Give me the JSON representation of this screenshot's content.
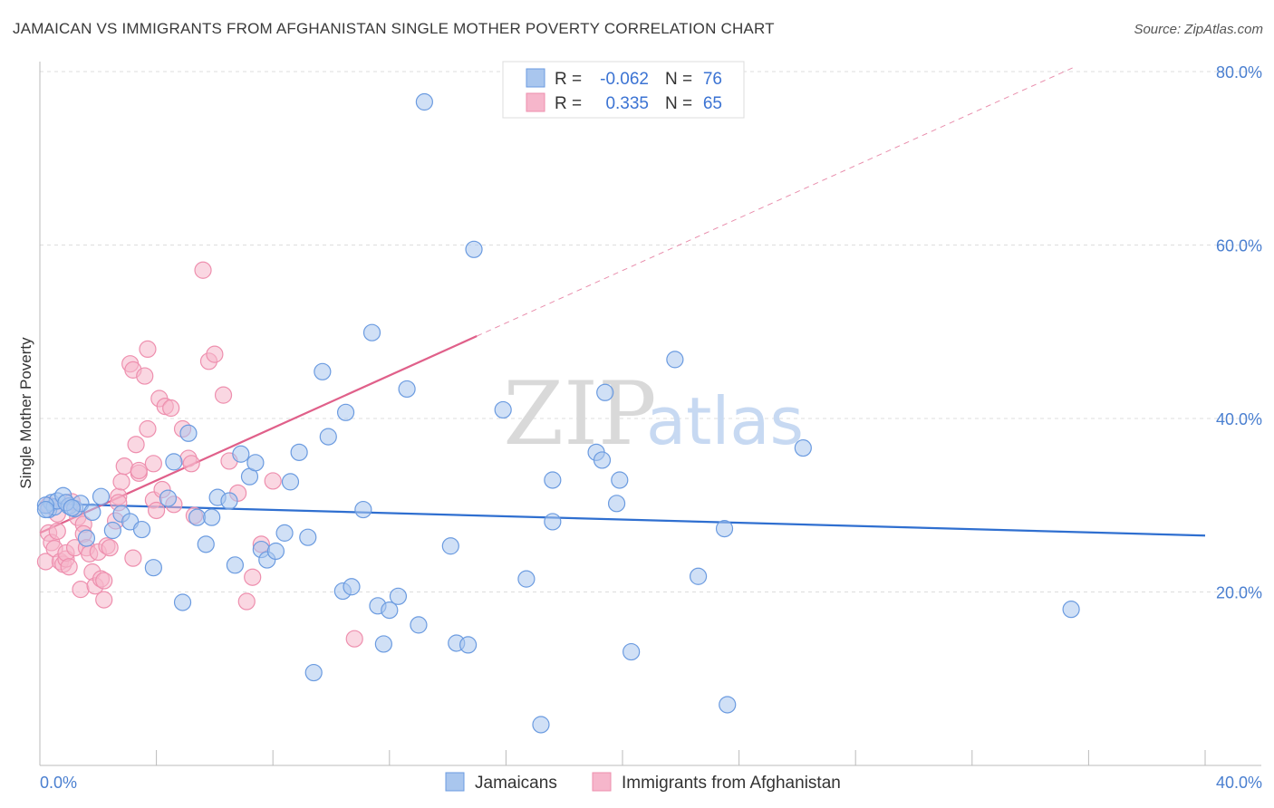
{
  "title": "JAMAICAN VS IMMIGRANTS FROM AFGHANISTAN SINGLE MOTHER POVERTY CORRELATION CHART",
  "source": "Source: ZipAtlas.com",
  "watermark": {
    "zip": "ZIP",
    "atlas": "atlas"
  },
  "colors": {
    "blue_fill": "#a9c6ee",
    "blue_stroke": "#6b9be0",
    "blue_line": "#2f6fd0",
    "pink_fill": "#f6b6cb",
    "pink_stroke": "#ee8fae",
    "pink_line": "#e0608a",
    "tick_color": "#4a7fd0",
    "grid": "#dddddd"
  },
  "legend": {
    "rows": [
      {
        "r_label": "R =",
        "r_value": "-0.062",
        "n_label": "N =",
        "n_value": "76",
        "series": "blue"
      },
      {
        "r_label": "R =",
        "r_value": "0.335",
        "n_label": "N =",
        "n_value": "65",
        "series": "pink"
      }
    ]
  },
  "bottom_legend": {
    "items": [
      "Jamaicans",
      "Immigrants from Afghanistan"
    ]
  },
  "chart_data": {
    "type": "scatter",
    "title": "JAMAICAN VS IMMIGRANTS FROM AFGHANISTAN SINGLE MOTHER POVERTY CORRELATION CHART",
    "xlabel": "",
    "ylabel": "Single Mother Poverty",
    "xlim": [
      0,
      40
    ],
    "ylim": [
      0,
      80
    ],
    "x_tick_labels": [
      "0.0%",
      "40.0%"
    ],
    "y_tick_labels": [
      "20.0%",
      "40.0%",
      "60.0%",
      "80.0%"
    ],
    "y_ticks": [
      20,
      40,
      60,
      80
    ],
    "grid": true,
    "legend_position": "top-center",
    "series": [
      {
        "name": "Jamaicans",
        "color": "blue",
        "points": [
          [
            0.3,
            29.5
          ],
          [
            0.4,
            30.3
          ],
          [
            0.5,
            29.8
          ],
          [
            0.6,
            30.5
          ],
          [
            0.8,
            31.1
          ],
          [
            1.0,
            29.9
          ],
          [
            1.2,
            29.6
          ],
          [
            1.4,
            30.2
          ],
          [
            1.6,
            26.2
          ],
          [
            1.8,
            29.2
          ],
          [
            2.1,
            31.0
          ],
          [
            2.5,
            27.1
          ],
          [
            2.8,
            29.0
          ],
          [
            3.1,
            28.1
          ],
          [
            3.5,
            27.2
          ],
          [
            3.9,
            22.8
          ],
          [
            4.4,
            30.8
          ],
          [
            4.6,
            35.0
          ],
          [
            4.9,
            18.8
          ],
          [
            5.1,
            38.3
          ],
          [
            5.4,
            28.6
          ],
          [
            5.7,
            25.5
          ],
          [
            5.9,
            28.6
          ],
          [
            6.1,
            30.9
          ],
          [
            6.5,
            30.5
          ],
          [
            6.7,
            23.1
          ],
          [
            6.9,
            35.9
          ],
          [
            7.2,
            33.3
          ],
          [
            7.4,
            34.9
          ],
          [
            7.6,
            24.9
          ],
          [
            7.8,
            23.7
          ],
          [
            8.1,
            24.7
          ],
          [
            8.4,
            26.8
          ],
          [
            8.6,
            32.7
          ],
          [
            8.9,
            36.1
          ],
          [
            9.2,
            26.3
          ],
          [
            9.4,
            10.7
          ],
          [
            9.7,
            45.4
          ],
          [
            9.9,
            37.9
          ],
          [
            10.4,
            20.1
          ],
          [
            10.7,
            20.6
          ],
          [
            10.5,
            40.7
          ],
          [
            11.1,
            29.5
          ],
          [
            11.4,
            49.9
          ],
          [
            11.6,
            18.4
          ],
          [
            11.8,
            14.0
          ],
          [
            12.0,
            17.9
          ],
          [
            12.3,
            19.5
          ],
          [
            12.6,
            43.4
          ],
          [
            13.0,
            16.2
          ],
          [
            13.2,
            76.5
          ],
          [
            14.1,
            25.3
          ],
          [
            14.3,
            14.1
          ],
          [
            14.7,
            13.9
          ],
          [
            14.9,
            59.5
          ],
          [
            15.9,
            41.0
          ],
          [
            16.7,
            21.5
          ],
          [
            17.2,
            4.7
          ],
          [
            17.6,
            32.9
          ],
          [
            17.6,
            28.1
          ],
          [
            19.1,
            36.1
          ],
          [
            19.4,
            43.0
          ],
          [
            19.3,
            35.2
          ],
          [
            19.9,
            32.9
          ],
          [
            19.8,
            30.2
          ],
          [
            20.3,
            13.1
          ],
          [
            21.8,
            46.8
          ],
          [
            22.6,
            21.8
          ],
          [
            23.5,
            27.3
          ],
          [
            23.6,
            7.0
          ],
          [
            26.2,
            36.6
          ],
          [
            35.4,
            18.0
          ],
          [
            0.2,
            30.0
          ],
          [
            0.2,
            29.5
          ],
          [
            0.9,
            30.3
          ],
          [
            1.1,
            29.7
          ]
        ]
      },
      {
        "name": "Immigrants from Afghanistan",
        "color": "pink",
        "points": [
          [
            0.2,
            23.5
          ],
          [
            0.3,
            26.8
          ],
          [
            0.3,
            30.0
          ],
          [
            0.4,
            25.7
          ],
          [
            0.5,
            25.0
          ],
          [
            0.6,
            29.0
          ],
          [
            0.6,
            27.0
          ],
          [
            0.7,
            23.5
          ],
          [
            0.8,
            23.2
          ],
          [
            0.9,
            23.8
          ],
          [
            0.9,
            24.5
          ],
          [
            1.0,
            22.9
          ],
          [
            1.1,
            30.4
          ],
          [
            1.2,
            25.1
          ],
          [
            1.3,
            28.6
          ],
          [
            1.4,
            20.3
          ],
          [
            1.5,
            27.8
          ],
          [
            1.5,
            26.7
          ],
          [
            1.6,
            25.1
          ],
          [
            1.7,
            24.4
          ],
          [
            1.8,
            22.3
          ],
          [
            1.9,
            20.7
          ],
          [
            2.0,
            24.6
          ],
          [
            2.1,
            21.5
          ],
          [
            2.2,
            21.3
          ],
          [
            2.3,
            25.3
          ],
          [
            2.4,
            25.1
          ],
          [
            2.6,
            28.2
          ],
          [
            2.7,
            31.0
          ],
          [
            2.7,
            30.3
          ],
          [
            2.8,
            32.7
          ],
          [
            2.9,
            34.5
          ],
          [
            3.1,
            46.3
          ],
          [
            3.2,
            45.6
          ],
          [
            3.3,
            37.0
          ],
          [
            3.4,
            33.7
          ],
          [
            3.4,
            34.0
          ],
          [
            3.6,
            44.9
          ],
          [
            3.7,
            48.0
          ],
          [
            3.7,
            38.8
          ],
          [
            3.9,
            30.6
          ],
          [
            3.9,
            34.8
          ],
          [
            4.1,
            42.3
          ],
          [
            4.3,
            41.4
          ],
          [
            4.5,
            41.2
          ],
          [
            4.6,
            30.1
          ],
          [
            4.9,
            38.8
          ],
          [
            5.1,
            35.4
          ],
          [
            5.2,
            34.8
          ],
          [
            5.3,
            28.8
          ],
          [
            5.6,
            57.1
          ],
          [
            5.8,
            46.6
          ],
          [
            6.0,
            47.4
          ],
          [
            6.3,
            42.7
          ],
          [
            6.5,
            35.1
          ],
          [
            6.8,
            31.4
          ],
          [
            7.1,
            18.9
          ],
          [
            7.3,
            21.7
          ],
          [
            7.6,
            25.5
          ],
          [
            8.0,
            32.8
          ],
          [
            10.8,
            14.6
          ],
          [
            3.2,
            23.9
          ],
          [
            4.0,
            29.4
          ],
          [
            4.2,
            31.8
          ],
          [
            2.2,
            19.1
          ]
        ]
      }
    ],
    "trendlines": [
      {
        "series": "Jamaicans",
        "x": [
          0,
          40
        ],
        "y": [
          30.2,
          26.5
        ],
        "style": "solid"
      },
      {
        "series": "Immigrants from Afghanistan",
        "x": [
          0,
          15
        ],
        "y": [
          26.8,
          49.5
        ],
        "style": "solid"
      },
      {
        "series": "Immigrants from Afghanistan",
        "x": [
          15,
          35.5
        ],
        "y": [
          49.5,
          80.5
        ],
        "style": "dashed"
      }
    ]
  }
}
